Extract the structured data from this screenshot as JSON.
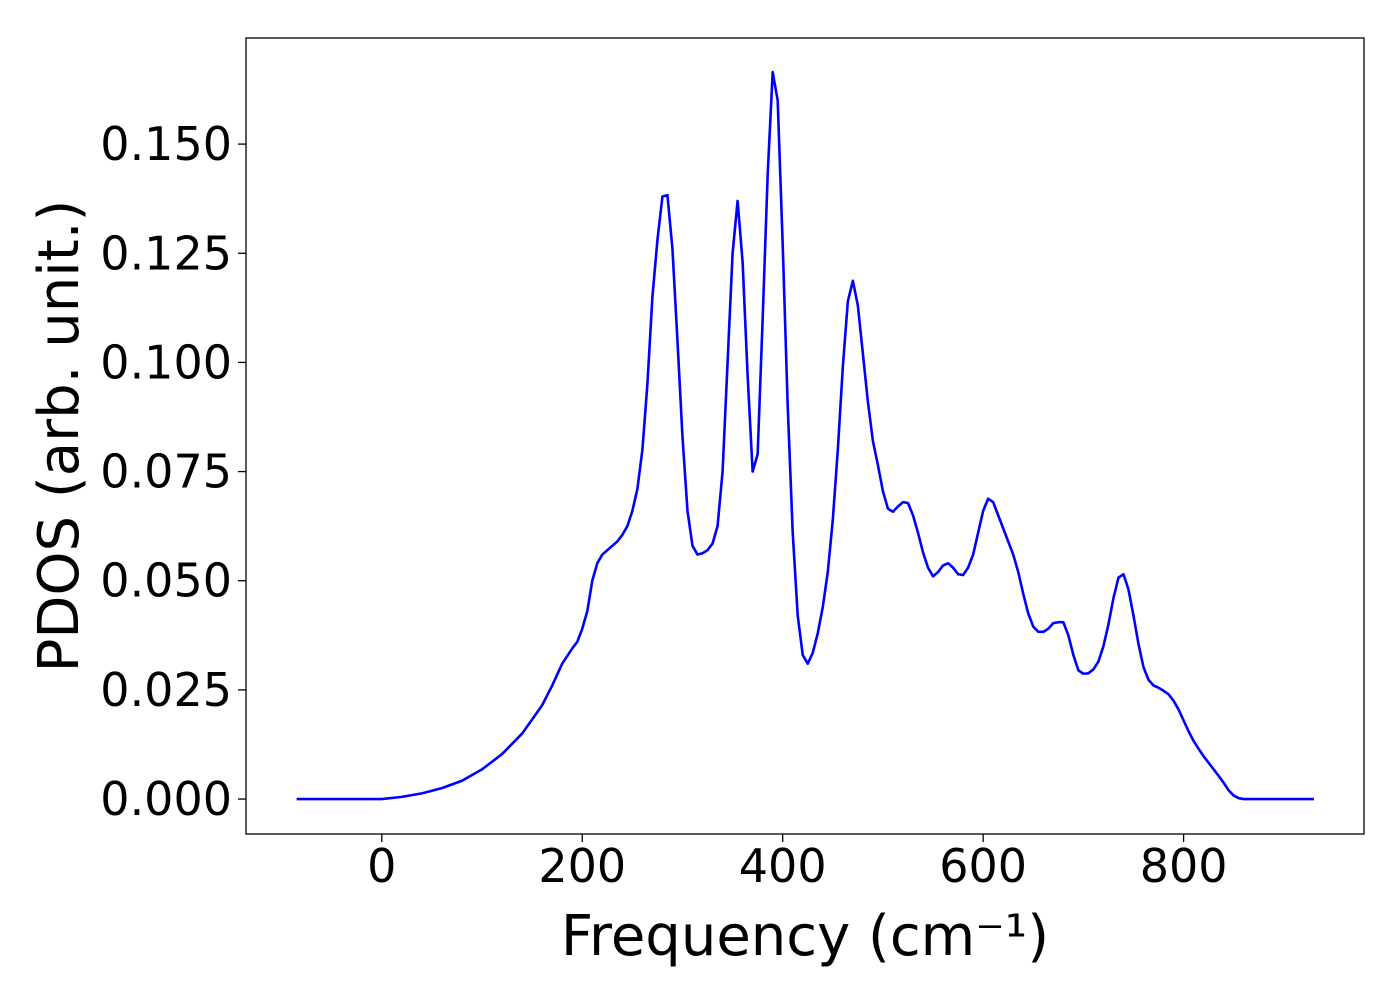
{
  "chart_data": {
    "type": "line",
    "xlabel": "Frequency (cm⁻¹)",
    "ylabel": "PDOS (arb. unit.)",
    "color": "#0000ff",
    "x": [
      -85,
      -50,
      0,
      20,
      40,
      60,
      80,
      100,
      120,
      140,
      160,
      170,
      180,
      190,
      195,
      200,
      205,
      210,
      215,
      220,
      225,
      230,
      235,
      240,
      245,
      250,
      255,
      260,
      265,
      270,
      275,
      280,
      285,
      290,
      295,
      300,
      305,
      310,
      315,
      320,
      325,
      330,
      335,
      340,
      345,
      350,
      355,
      360,
      365,
      370,
      375,
      380,
      385,
      390,
      395,
      400,
      405,
      410,
      415,
      420,
      425,
      430,
      435,
      440,
      445,
      450,
      455,
      460,
      465,
      470,
      475,
      480,
      485,
      490,
      495,
      500,
      505,
      510,
      515,
      520,
      525,
      530,
      535,
      540,
      545,
      550,
      555,
      560,
      565,
      570,
      575,
      580,
      585,
      590,
      595,
      600,
      605,
      610,
      615,
      620,
      625,
      630,
      635,
      640,
      645,
      650,
      655,
      660,
      665,
      670,
      675,
      680,
      685,
      690,
      695,
      700,
      705,
      710,
      715,
      720,
      725,
      730,
      735,
      740,
      745,
      750,
      755,
      760,
      765,
      770,
      775,
      780,
      785,
      790,
      795,
      800,
      805,
      810,
      815,
      820,
      825,
      830,
      835,
      840,
      845,
      850,
      855,
      860,
      900,
      930
    ],
    "values": [
      0,
      0,
      0,
      0.0005,
      0.0013,
      0.0025,
      0.0042,
      0.0068,
      0.0103,
      0.015,
      0.0215,
      0.026,
      0.031,
      0.0345,
      0.036,
      0.039,
      0.043,
      0.05,
      0.054,
      0.056,
      0.057,
      0.058,
      0.059,
      0.0605,
      0.0625,
      0.066,
      0.071,
      0.08,
      0.095,
      0.115,
      0.128,
      0.138,
      0.1383,
      0.126,
      0.105,
      0.083,
      0.066,
      0.058,
      0.056,
      0.0563,
      0.057,
      0.0585,
      0.0625,
      0.075,
      0.1,
      0.125,
      0.137,
      0.123,
      0.097,
      0.075,
      0.079,
      0.11,
      0.143,
      0.1665,
      0.16,
      0.127,
      0.09,
      0.061,
      0.042,
      0.033,
      0.031,
      0.0335,
      0.038,
      0.044,
      0.052,
      0.064,
      0.08,
      0.099,
      0.114,
      0.1187,
      0.113,
      0.102,
      0.091,
      0.082,
      0.0765,
      0.0705,
      0.0665,
      0.0658,
      0.067,
      0.068,
      0.0678,
      0.065,
      0.061,
      0.0565,
      0.053,
      0.051,
      0.052,
      0.0535,
      0.054,
      0.053,
      0.0515,
      0.0513,
      0.053,
      0.056,
      0.061,
      0.066,
      0.0688,
      0.068,
      0.065,
      0.062,
      0.059,
      0.056,
      0.052,
      0.047,
      0.0425,
      0.0395,
      0.0383,
      0.0383,
      0.039,
      0.0403,
      0.0405,
      0.0405,
      0.0375,
      0.033,
      0.0295,
      0.0287,
      0.0288,
      0.0297,
      0.0315,
      0.035,
      0.04,
      0.046,
      0.0507,
      0.0515,
      0.048,
      0.042,
      0.0355,
      0.0302,
      0.0273,
      0.026,
      0.0255,
      0.0248,
      0.024,
      0.0225,
      0.0205,
      0.018,
      0.0155,
      0.0133,
      0.0115,
      0.0098,
      0.0083,
      0.0068,
      0.0053,
      0.0037,
      0.002,
      0.0008,
      0.0002,
      0,
      0,
      0
    ],
    "xlim": [
      -135.5,
      980
    ],
    "xticks": [
      0,
      200,
      400,
      600,
      800
    ],
    "ylim": [
      -0.008,
      0.1743
    ],
    "yticks": [
      {
        "value": 0,
        "label": "0.000"
      },
      {
        "value": 0.025,
        "label": "0.025"
      },
      {
        "value": 0.05,
        "label": "0.050"
      },
      {
        "value": 0.075,
        "label": "0.075"
      },
      {
        "value": 0.1,
        "label": "0.100"
      },
      {
        "value": 0.125,
        "label": "0.125"
      },
      {
        "value": 0.15,
        "label": "0.150"
      }
    ]
  }
}
